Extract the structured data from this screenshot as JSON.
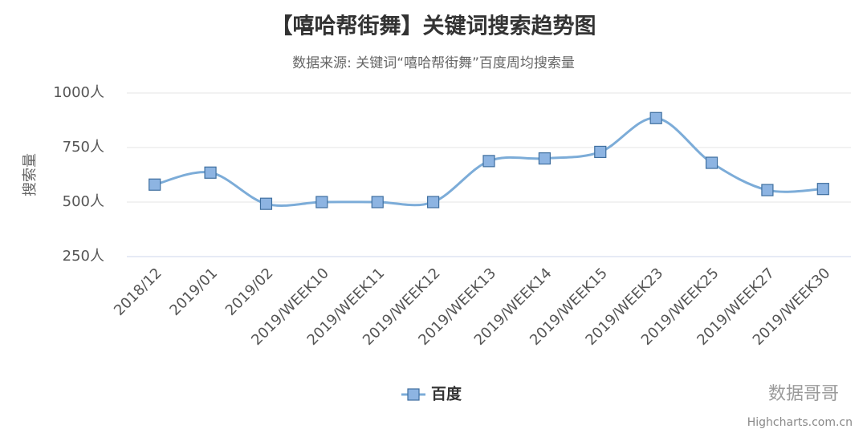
{
  "chart_data": {
    "type": "line",
    "title": "【嘻哈帮街舞】关键词搜索趋势图",
    "subtitle": "数据来源: 关键词“嘻哈帮街舞”百度周均搜索量",
    "y_label": "搜索量",
    "categories": [
      "2018/12",
      "2019/01",
      "2019/02",
      "2019/WEEK10",
      "2019/WEEK11",
      "2019/WEEK12",
      "2019/WEEK13",
      "2019/WEEK14",
      "2019/WEEK15",
      "2019/WEEK23",
      "2019/WEEK25",
      "2019/WEEK27",
      "2019/WEEK30"
    ],
    "series": [
      {
        "name": "百度",
        "color": "#7cacd8",
        "values": [
          580,
          635,
          492,
          500,
          500,
          500,
          688,
          700,
          730,
          885,
          680,
          555,
          560
        ]
      }
    ],
    "ylim": [
      250,
      1000
    ],
    "yticks": [
      {
        "value": 250,
        "label": "250人"
      },
      {
        "value": 500,
        "label": "500人"
      },
      {
        "value": 750,
        "label": "750人"
      },
      {
        "value": 1000,
        "label": "1000人"
      }
    ],
    "grid": true,
    "watermark": "数据哥哥",
    "credits": "Highcharts.com.cn"
  }
}
